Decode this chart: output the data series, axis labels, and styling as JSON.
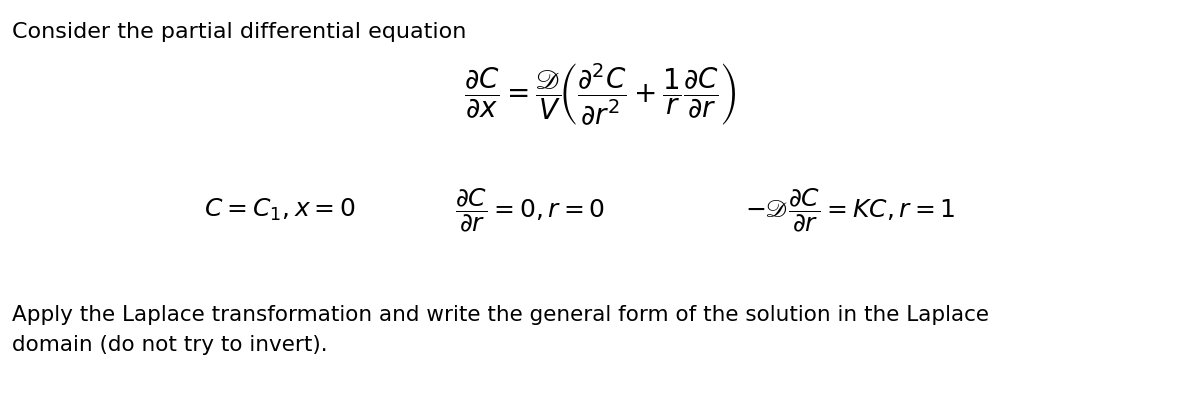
{
  "title_text": "Consider the partial differential equation",
  "footer_line1": "Apply the Laplace transformation and write the general form of the solution in the Laplace",
  "footer_line2": "domain (do not try to invert).",
  "bg_color": "#ffffff",
  "text_color": "#000000",
  "title_fontsize": 16,
  "eq_fontsize": 20,
  "bc_fontsize": 18,
  "footer_fontsize": 15.5,
  "fig_width": 12.0,
  "fig_height": 3.93,
  "dpi": 100
}
